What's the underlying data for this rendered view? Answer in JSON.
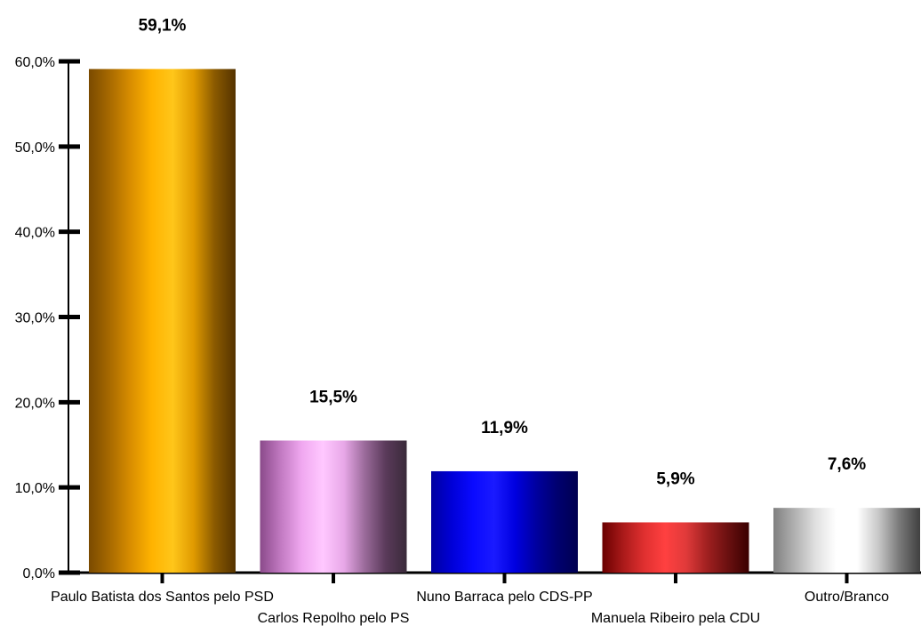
{
  "chart_data": {
    "type": "bar",
    "categories": [
      "Paulo Batista dos Santos pelo PSD",
      "Carlos Repolho pelo PS",
      "Nuno Barraca pelo CDS-PP",
      "Manuela Ribeiro pela CDU",
      "Outro/Branco"
    ],
    "values": [
      59.1,
      15.5,
      11.9,
      5.9,
      7.6
    ],
    "value_labels": [
      "59,1%",
      "15,5%",
      "11,9%",
      "5,9%",
      "7,6%"
    ],
    "yticks": [
      "0,0%",
      "10,0%",
      "20,0%",
      "30,0%",
      "40,0%",
      "50,0%",
      "60,0%"
    ],
    "ylim": [
      0,
      60
    ],
    "grid": false,
    "legend": "none",
    "colors": [
      [
        "#7a4a00",
        "#a86a00",
        "#d98e00",
        "#ffb300",
        "#ffc61a",
        "#e09a00",
        "#8a5a00",
        "#553300"
      ],
      [
        "#8a4a8a",
        "#c27ac2",
        "#f0a8f0",
        "#ffc8ff",
        "#e8a8e8",
        "#9a6a9a",
        "#5a3a5a",
        "#3a2a3a"
      ],
      [
        "#0000a0",
        "#0000d8",
        "#0a0aff",
        "#1a1aff",
        "#0000e0",
        "#0000a0",
        "#000070",
        "#000050"
      ],
      [
        "#6a0000",
        "#aa1a1a",
        "#e03030",
        "#ff4040",
        "#e03a3a",
        "#a02020",
        "#6a1010",
        "#3a0000"
      ],
      [
        "#808080",
        "#b0b0b0",
        "#e0e0e0",
        "#ffffff",
        "#ffffff",
        "#c8c8c8",
        "#7a7a7a",
        "#404040"
      ]
    ]
  }
}
